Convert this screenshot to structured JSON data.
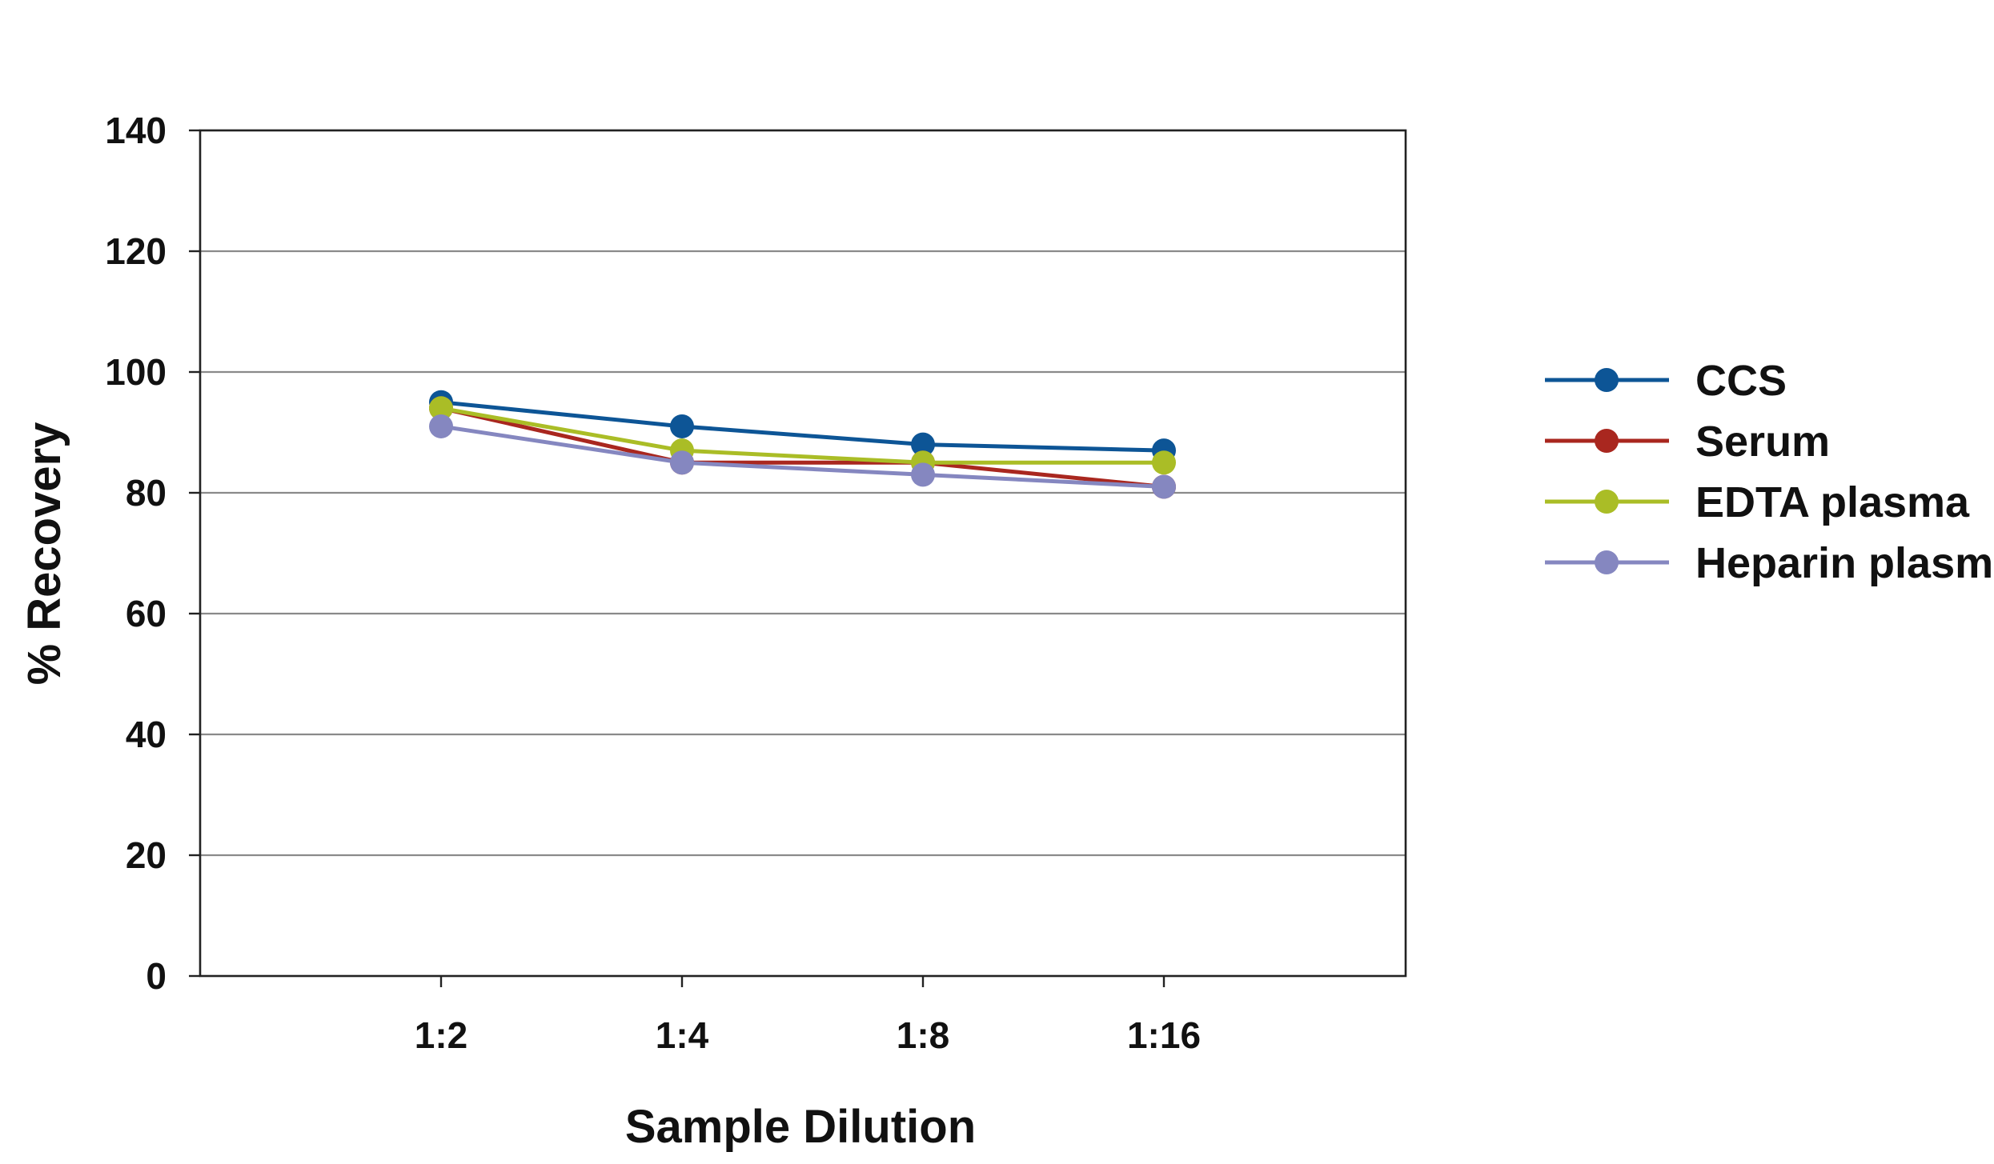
{
  "chart_data": {
    "type": "line",
    "title": "",
    "xlabel": "Sample Dilution",
    "ylabel": "% Recovery",
    "categories": [
      "1:2",
      "1:4",
      "1:8",
      "1:16"
    ],
    "ylim": [
      0,
      140
    ],
    "yticks": [
      0,
      20,
      40,
      60,
      80,
      100,
      120,
      140
    ],
    "grid": "horizontal",
    "legend_position": "right",
    "series": [
      {
        "name": "CCS",
        "color": "#0d5596",
        "values": [
          95,
          91,
          88,
          87
        ]
      },
      {
        "name": "Serum",
        "color": "#a9271f",
        "values": [
          94,
          85,
          85,
          81
        ]
      },
      {
        "name": "EDTA plasma",
        "color": "#aabd26",
        "values": [
          94,
          87,
          85,
          85
        ]
      },
      {
        "name": "Heparin plasma",
        "color": "#8587c0",
        "values": [
          91,
          85,
          83,
          81
        ]
      }
    ]
  }
}
